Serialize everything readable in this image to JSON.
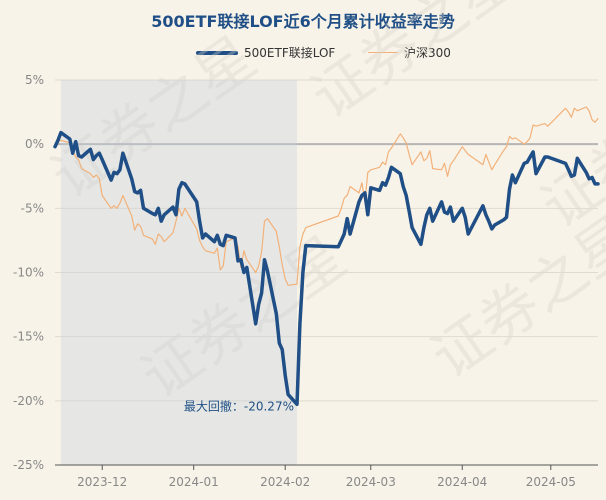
{
  "chart_data": {
    "type": "line",
    "title": "500ETF联接LOF近6个月累计收益率走势",
    "xlabel": "",
    "ylabel": "",
    "y_unit": "%",
    "ylim": [
      -25,
      5
    ],
    "yticks": [
      5,
      0,
      -5,
      -10,
      -15,
      -20,
      -25
    ],
    "ytick_labels": [
      "5%",
      "0%",
      "-5%",
      "-10%",
      "-15%",
      "-20%",
      "-25%"
    ],
    "xticks": [
      "2023-12",
      "2024-01",
      "2024-02",
      "2024-03",
      "2024-04",
      "2024-05"
    ],
    "xlim": [
      "2023-11-15",
      "2024-05-17"
    ],
    "grid": "horizontal",
    "legend_position": "top-center",
    "watermark": "证券之星",
    "series": [
      {
        "name": "500ETF联接LOF",
        "color": "#1f4f86",
        "points": [
          [
            "2023-11-15",
            -0.2
          ],
          [
            "2023-11-16",
            0.3
          ],
          [
            "2023-11-17",
            0.9
          ],
          [
            "2023-11-20",
            0.4
          ],
          [
            "2023-11-21",
            -0.7
          ],
          [
            "2023-11-22",
            0.2
          ],
          [
            "2023-11-23",
            -0.9
          ],
          [
            "2023-11-24",
            -1.0
          ],
          [
            "2023-11-27",
            -0.4
          ],
          [
            "2023-11-28",
            -1.2
          ],
          [
            "2023-11-29",
            -0.9
          ],
          [
            "2023-11-30",
            -0.7
          ],
          [
            "2023-12-01",
            -1.2
          ],
          [
            "2023-12-04",
            -2.8
          ],
          [
            "2023-12-05",
            -2.2
          ],
          [
            "2023-12-06",
            -2.3
          ],
          [
            "2023-12-07",
            -2.0
          ],
          [
            "2023-12-08",
            -0.7
          ],
          [
            "2023-12-11",
            -2.7
          ],
          [
            "2023-12-12",
            -3.7
          ],
          [
            "2023-12-13",
            -3.8
          ],
          [
            "2023-12-14",
            -3.6
          ],
          [
            "2023-12-15",
            -5.0
          ],
          [
            "2023-12-18",
            -5.4
          ],
          [
            "2023-12-19",
            -5.5
          ],
          [
            "2023-12-20",
            -5.0
          ],
          [
            "2023-12-21",
            -6.0
          ],
          [
            "2023-12-22",
            -5.5
          ],
          [
            "2023-12-25",
            -4.9
          ],
          [
            "2023-12-26",
            -5.5
          ],
          [
            "2023-12-27",
            -3.5
          ],
          [
            "2023-12-28",
            -3.0
          ],
          [
            "2023-12-29",
            -3.1
          ],
          [
            "2024-01-02",
            -4.5
          ],
          [
            "2024-01-03",
            -6.0
          ],
          [
            "2024-01-04",
            -7.3
          ],
          [
            "2024-01-05",
            -7.0
          ],
          [
            "2024-01-08",
            -7.6
          ],
          [
            "2024-01-09",
            -7.1
          ],
          [
            "2024-01-10",
            -7.8
          ],
          [
            "2024-01-11",
            -7.9
          ],
          [
            "2024-01-12",
            -7.1
          ],
          [
            "2024-01-15",
            -7.3
          ],
          [
            "2024-01-16",
            -9.1
          ],
          [
            "2024-01-17",
            -9.0
          ],
          [
            "2024-01-18",
            -10.0
          ],
          [
            "2024-01-19",
            -9.6
          ],
          [
            "2024-01-22",
            -14.0
          ],
          [
            "2024-01-23",
            -12.5
          ],
          [
            "2024-01-24",
            -11.6
          ],
          [
            "2024-01-25",
            -9.0
          ],
          [
            "2024-01-26",
            -9.9
          ],
          [
            "2024-01-29",
            -13.2
          ],
          [
            "2024-01-30",
            -15.5
          ],
          [
            "2024-01-31",
            -16.0
          ],
          [
            "2024-02-01",
            -18.0
          ],
          [
            "2024-02-02",
            -19.5
          ],
          [
            "2024-02-05",
            -20.27
          ],
          [
            "2024-02-06",
            -14.0
          ],
          [
            "2024-02-07",
            -10.0
          ],
          [
            "2024-02-08",
            -7.9
          ],
          [
            "2024-02-19",
            -8.0
          ],
          [
            "2024-02-20",
            -7.5
          ],
          [
            "2024-02-21",
            -7.0
          ],
          [
            "2024-02-22",
            -5.8
          ],
          [
            "2024-02-23",
            -7.0
          ],
          [
            "2024-02-26",
            -4.5
          ],
          [
            "2024-02-27",
            -4.0
          ],
          [
            "2024-02-28",
            -3.8
          ],
          [
            "2024-02-29",
            -5.5
          ],
          [
            "2024-03-01",
            -3.4
          ],
          [
            "2024-03-04",
            -3.6
          ],
          [
            "2024-03-05",
            -3.0
          ],
          [
            "2024-03-06",
            -3.2
          ],
          [
            "2024-03-07",
            -2.6
          ],
          [
            "2024-03-08",
            -1.8
          ],
          [
            "2024-03-11",
            -2.3
          ],
          [
            "2024-03-12",
            -3.3
          ],
          [
            "2024-03-13",
            -4.0
          ],
          [
            "2024-03-14",
            -5.2
          ],
          [
            "2024-03-15",
            -6.5
          ],
          [
            "2024-03-18",
            -7.8
          ],
          [
            "2024-03-19",
            -6.5
          ],
          [
            "2024-03-20",
            -5.5
          ],
          [
            "2024-03-21",
            -5.0
          ],
          [
            "2024-03-22",
            -6.0
          ],
          [
            "2024-03-25",
            -4.5
          ],
          [
            "2024-03-26",
            -5.3
          ],
          [
            "2024-03-27",
            -5.4
          ],
          [
            "2024-03-28",
            -4.9
          ],
          [
            "2024-03-29",
            -6.0
          ],
          [
            "2024-04-01",
            -5.0
          ],
          [
            "2024-04-02",
            -5.7
          ],
          [
            "2024-04-03",
            -7.0
          ],
          [
            "2024-04-08",
            -4.8
          ],
          [
            "2024-04-09",
            -5.5
          ],
          [
            "2024-04-10",
            -6.0
          ],
          [
            "2024-04-11",
            -6.6
          ],
          [
            "2024-04-12",
            -6.3
          ],
          [
            "2024-04-15",
            -5.9
          ],
          [
            "2024-04-16",
            -5.7
          ],
          [
            "2024-04-17",
            -3.5
          ],
          [
            "2024-04-18",
            -2.4
          ],
          [
            "2024-04-19",
            -3.0
          ],
          [
            "2024-04-22",
            -1.5
          ],
          [
            "2024-04-23",
            -1.4
          ],
          [
            "2024-04-24",
            -1.0
          ],
          [
            "2024-04-25",
            -0.6
          ],
          [
            "2024-04-26",
            -2.3
          ],
          [
            "2024-04-29",
            -1.0
          ],
          [
            "2024-04-30",
            -1.0
          ],
          [
            "2024-05-06",
            -1.5
          ],
          [
            "2024-05-07",
            -2.0
          ],
          [
            "2024-05-08",
            -2.5
          ],
          [
            "2024-05-09",
            -2.4
          ],
          [
            "2024-05-10",
            -1.1
          ],
          [
            "2024-05-13",
            -2.2
          ],
          [
            "2024-05-14",
            -2.7
          ],
          [
            "2024-05-15",
            -2.6
          ],
          [
            "2024-05-16",
            -3.1
          ],
          [
            "2024-05-17",
            -3.1
          ]
        ]
      },
      {
        "name": "沪深300",
        "color": "#f2b17a",
        "points": [
          [
            "2023-11-15",
            -0.3
          ],
          [
            "2023-11-16",
            0.2
          ],
          [
            "2023-11-17",
            0.3
          ],
          [
            "2023-11-20",
            0.1
          ],
          [
            "2023-11-21",
            -0.5
          ],
          [
            "2023-11-22",
            -1.0
          ],
          [
            "2023-11-23",
            -1.2
          ],
          [
            "2023-11-24",
            -1.9
          ],
          [
            "2023-11-27",
            -2.3
          ],
          [
            "2023-11-28",
            -2.6
          ],
          [
            "2023-11-29",
            -2.4
          ],
          [
            "2023-11-30",
            -2.7
          ],
          [
            "2023-12-01",
            -4.0
          ],
          [
            "2023-12-04",
            -5.0
          ],
          [
            "2023-12-05",
            -4.8
          ],
          [
            "2023-12-06",
            -5.0
          ],
          [
            "2023-12-07",
            -4.6
          ],
          [
            "2023-12-08",
            -4.0
          ],
          [
            "2023-12-11",
            -5.6
          ],
          [
            "2023-12-12",
            -6.7
          ],
          [
            "2023-12-13",
            -6.2
          ],
          [
            "2023-12-14",
            -6.4
          ],
          [
            "2023-12-15",
            -7.1
          ],
          [
            "2023-12-18",
            -7.4
          ],
          [
            "2023-12-19",
            -7.8
          ],
          [
            "2023-12-20",
            -7.0
          ],
          [
            "2023-12-21",
            -7.2
          ],
          [
            "2023-12-22",
            -7.6
          ],
          [
            "2023-12-25",
            -6.9
          ],
          [
            "2023-12-26",
            -6.0
          ],
          [
            "2023-12-27",
            -5.0
          ],
          [
            "2023-12-28",
            -5.6
          ],
          [
            "2023-12-29",
            -5.0
          ],
          [
            "2024-01-02",
            -6.6
          ],
          [
            "2024-01-03",
            -7.5
          ],
          [
            "2024-01-04",
            -8.0
          ],
          [
            "2024-01-05",
            -8.3
          ],
          [
            "2024-01-08",
            -8.5
          ],
          [
            "2024-01-09",
            -8.1
          ],
          [
            "2024-01-10",
            -9.8
          ],
          [
            "2024-01-11",
            -9.5
          ],
          [
            "2024-01-12",
            -7.6
          ],
          [
            "2024-01-15",
            -7.3
          ],
          [
            "2024-01-16",
            -8.0
          ],
          [
            "2024-01-17",
            -9.6
          ],
          [
            "2024-01-18",
            -8.3
          ],
          [
            "2024-01-19",
            -9.0
          ],
          [
            "2024-01-22",
            -10.0
          ],
          [
            "2024-01-23",
            -9.5
          ],
          [
            "2024-01-24",
            -8.4
          ],
          [
            "2024-01-25",
            -6.0
          ],
          [
            "2024-01-26",
            -5.8
          ],
          [
            "2024-01-29",
            -6.8
          ],
          [
            "2024-01-30",
            -8.0
          ],
          [
            "2024-01-31",
            -9.4
          ],
          [
            "2024-02-01",
            -10.5
          ],
          [
            "2024-02-02",
            -11.0
          ],
          [
            "2024-02-05",
            -10.9
          ],
          [
            "2024-02-06",
            -8.0
          ],
          [
            "2024-02-07",
            -7.0
          ],
          [
            "2024-02-08",
            -6.5
          ],
          [
            "2024-02-19",
            -5.6
          ],
          [
            "2024-02-20",
            -5.0
          ],
          [
            "2024-02-21",
            -4.2
          ],
          [
            "2024-02-22",
            -4.0
          ],
          [
            "2024-02-23",
            -3.3
          ],
          [
            "2024-02-26",
            -3.8
          ],
          [
            "2024-02-27",
            -3.0
          ],
          [
            "2024-02-28",
            -4.5
          ],
          [
            "2024-02-29",
            -2.2
          ],
          [
            "2024-03-01",
            -2.0
          ],
          [
            "2024-03-04",
            -1.8
          ],
          [
            "2024-03-05",
            -1.4
          ],
          [
            "2024-03-06",
            -1.6
          ],
          [
            "2024-03-07",
            -0.6
          ],
          [
            "2024-03-08",
            -0.3
          ],
          [
            "2024-03-11",
            0.8
          ],
          [
            "2024-03-12",
            0.5
          ],
          [
            "2024-03-13",
            0.1
          ],
          [
            "2024-03-14",
            -0.8
          ],
          [
            "2024-03-15",
            -1.6
          ],
          [
            "2024-03-18",
            -0.6
          ],
          [
            "2024-03-19",
            -1.3
          ],
          [
            "2024-03-20",
            -1.1
          ],
          [
            "2024-03-21",
            -0.5
          ],
          [
            "2024-03-22",
            -1.9
          ],
          [
            "2024-03-25",
            -2.0
          ],
          [
            "2024-03-26",
            -1.5
          ],
          [
            "2024-03-27",
            -2.5
          ],
          [
            "2024-03-28",
            -1.6
          ],
          [
            "2024-03-29",
            -1.3
          ],
          [
            "2024-04-01",
            -0.2
          ],
          [
            "2024-04-02",
            -0.5
          ],
          [
            "2024-04-03",
            -0.8
          ],
          [
            "2024-04-08",
            -1.6
          ],
          [
            "2024-04-09",
            -0.8
          ],
          [
            "2024-04-10",
            -1.4
          ],
          [
            "2024-04-11",
            -2.0
          ],
          [
            "2024-04-12",
            -1.6
          ],
          [
            "2024-04-15",
            -0.5
          ],
          [
            "2024-04-16",
            -0.2
          ],
          [
            "2024-04-17",
            0.6
          ],
          [
            "2024-04-18",
            0.4
          ],
          [
            "2024-04-19",
            0.5
          ],
          [
            "2024-04-22",
            0.0
          ],
          [
            "2024-04-23",
            0.2
          ],
          [
            "2024-04-24",
            0.5
          ],
          [
            "2024-04-25",
            1.5
          ],
          [
            "2024-04-26",
            1.4
          ],
          [
            "2024-04-29",
            1.6
          ],
          [
            "2024-04-30",
            1.4
          ],
          [
            "2024-05-06",
            2.8
          ],
          [
            "2024-05-07",
            2.5
          ],
          [
            "2024-05-08",
            2.1
          ],
          [
            "2024-05-09",
            2.8
          ],
          [
            "2024-05-10",
            2.6
          ],
          [
            "2024-05-13",
            2.9
          ],
          [
            "2024-05-14",
            2.6
          ],
          [
            "2024-05-15",
            1.9
          ],
          [
            "2024-05-16",
            1.7
          ],
          [
            "2024-05-17",
            2.0
          ]
        ]
      }
    ],
    "max_drawdown": {
      "label": "最大回撤：-20.27%",
      "value": -20.27,
      "start": "2023-11-17",
      "end": "2024-02-05"
    }
  }
}
